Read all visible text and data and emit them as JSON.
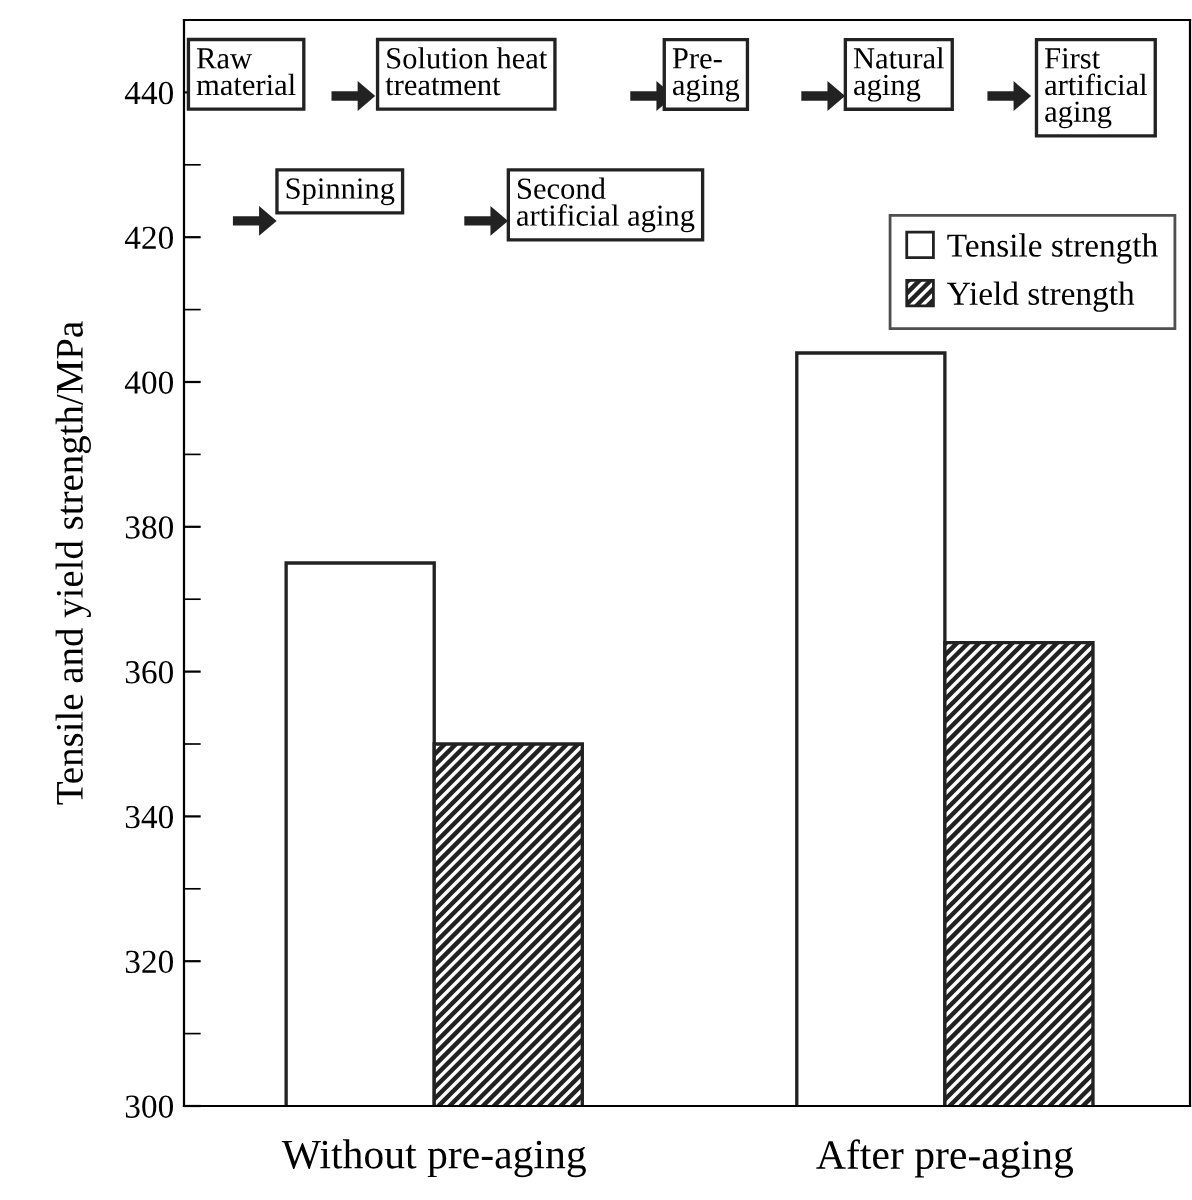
{
  "chart_data": {
    "type": "bar",
    "ylabel": "Tensile and yield strength/MPa",
    "categories": [
      "Without pre-aging",
      "After pre-aging"
    ],
    "series": [
      {
        "name": "Tensile strength",
        "color": "#ffffff",
        "values": [
          375,
          404
        ]
      },
      {
        "name": "Yield strength",
        "color": "#222222",
        "values": [
          350,
          364
        ]
      }
    ],
    "ylim": [
      300,
      450
    ],
    "yticks": [
      300,
      320,
      340,
      360,
      380,
      400,
      420,
      440
    ],
    "legend": "top right",
    "grid": false,
    "annotations": [
      "Raw\nmaterial",
      "Solution heat\ntreatment",
      "Pre-\naging",
      "Natural\naging",
      "First\nartificial\naging",
      "Spinning",
      "Second\nartificial aging"
    ]
  }
}
